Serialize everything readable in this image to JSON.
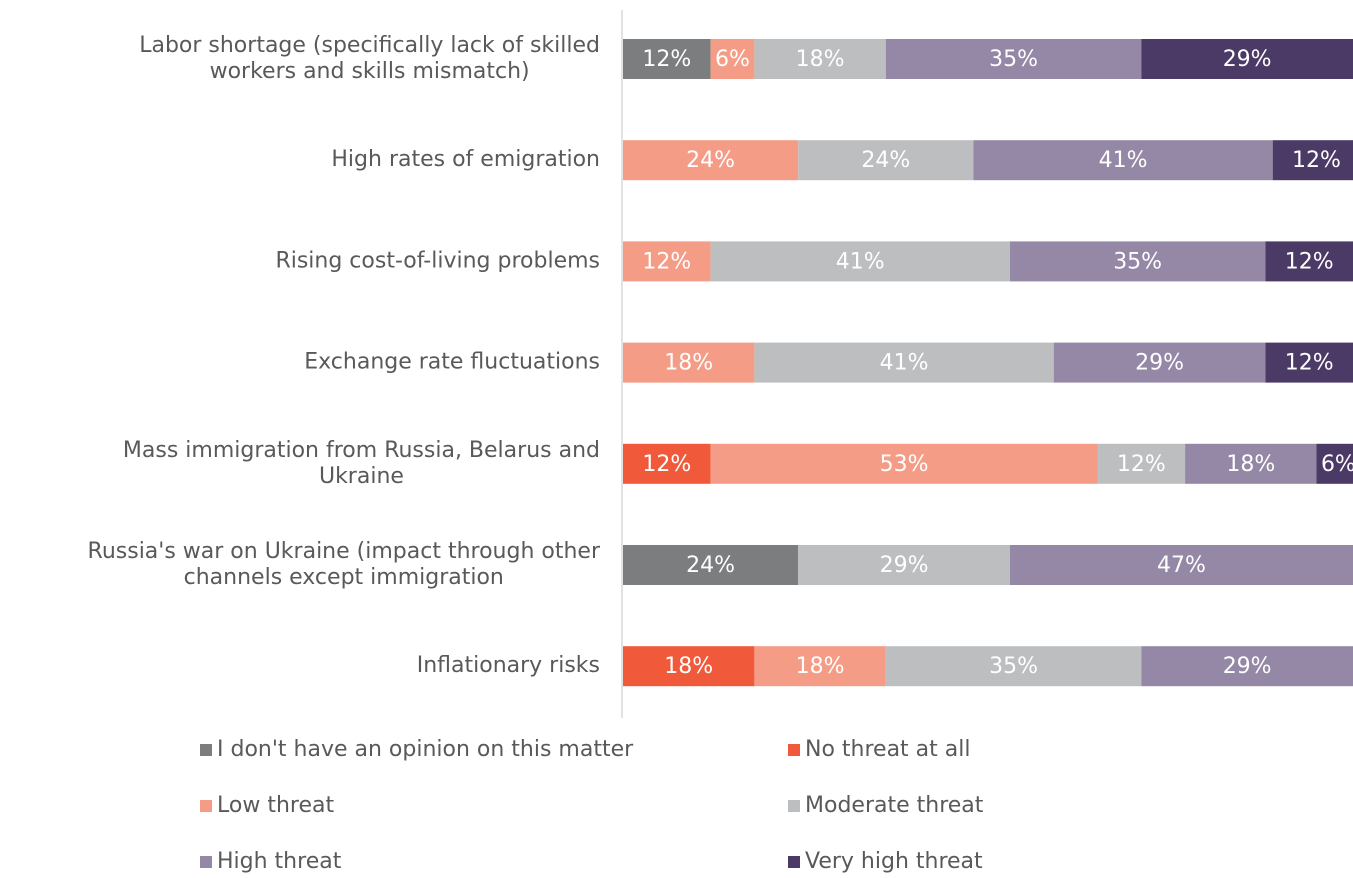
{
  "chart_data": {
    "type": "stacked-bar-horizontal",
    "categories": [
      [
        "Labor shortage (specifically lack of skilled",
        "workers and skills mismatch)"
      ],
      [
        "High rates of emigration"
      ],
      [
        "Rising cost-of-living problems"
      ],
      [
        "Exchange rate fluctuations"
      ],
      [
        "Mass immigration from Russia, Belarus and",
        "Ukraine"
      ],
      [
        "Russia's war on Ukraine (impact through other",
        "channels except immigration"
      ],
      [
        "Inflationary risks"
      ]
    ],
    "xlim": [
      0,
      100
    ],
    "legend": "bottom",
    "series": [
      {
        "name": "I don't have an opinion on this matter",
        "color": "#7b7d7e",
        "values": [
          12,
          null,
          null,
          null,
          null,
          24,
          null
        ],
        "value_labels": [
          "12%",
          null,
          null,
          null,
          null,
          "24%",
          null
        ]
      },
      {
        "name": "No threat at all",
        "color": "#f05a3a",
        "values": [
          null,
          null,
          null,
          null,
          12,
          null,
          18
        ],
        "value_labels": [
          null,
          null,
          null,
          null,
          "12%",
          null,
          "18%"
        ]
      },
      {
        "name": "Low threat",
        "color": "#f59c87",
        "values": [
          6,
          24,
          12,
          18,
          53,
          null,
          18
        ],
        "value_labels": [
          "6%",
          "24%",
          "12%",
          "18%",
          "53%",
          null,
          "18%"
        ]
      },
      {
        "name": "Moderate threat",
        "color": "#bdbebf",
        "values": [
          18,
          24,
          41,
          41,
          12,
          29,
          35
        ],
        "value_labels": [
          "18%",
          "24%",
          "41%",
          "41%",
          "12%",
          "29%",
          "35%"
        ]
      },
      {
        "name": "High threat",
        "color": "#9488a6",
        "values": [
          35,
          41,
          35,
          29,
          18,
          47,
          29
        ],
        "value_labels": [
          "35%",
          "41%",
          "35%",
          "29%",
          "18%",
          "47%",
          "29%"
        ]
      },
      {
        "name": "Very high threat",
        "color": "#4b3a66",
        "values": [
          29,
          12,
          12,
          12,
          6,
          null,
          null
        ],
        "value_labels": [
          "29%",
          "12%",
          "12%",
          "12%",
          "6%",
          null,
          null
        ]
      }
    ]
  }
}
